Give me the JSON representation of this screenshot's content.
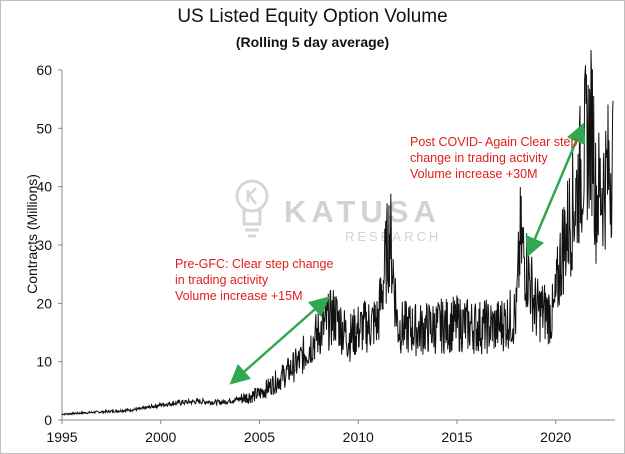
{
  "chart_data": {
    "type": "line",
    "title": "US Listed Equity Option Volume",
    "subtitle": "(Rolling 5 day average)",
    "xlabel": "",
    "ylabel": "Contracts (Millions)",
    "xlim": [
      1995,
      2023
    ],
    "ylim": [
      0,
      60
    ],
    "x_ticks": [
      1995,
      2000,
      2005,
      2010,
      2015,
      2020
    ],
    "y_ticks": [
      0,
      10,
      20,
      30,
      40,
      50,
      60
    ],
    "grid": false,
    "legend": "none",
    "colors": {
      "line": "#111111",
      "arrow": "#2fa84f",
      "annotation": "#e0201c",
      "axis": "#888888"
    },
    "series": [
      {
        "x": [
          1995,
          1996,
          1997,
          1998,
          1999,
          2000,
          2001,
          2002,
          2003,
          2004,
          2005,
          2006,
          2007,
          2008,
          2008.8,
          2009.5,
          2010,
          2011,
          2011.6,
          2012,
          2013,
          2014,
          2015,
          2016,
          2017,
          2018,
          2018.2,
          2019,
          2019.9,
          2020.3,
          2021,
          2021.5,
          2021.9,
          2022,
          2022.5,
          2022.9
        ],
        "values": [
          1.0,
          1.2,
          1.4,
          1.6,
          1.9,
          2.6,
          3.0,
          3.2,
          3.0,
          3.6,
          4.5,
          7.0,
          10.0,
          15.0,
          18.0,
          14.0,
          15.5,
          17.0,
          32.5,
          16.0,
          15.5,
          16.0,
          16.5,
          16.0,
          16.0,
          18.0,
          31.0,
          19.0,
          18.0,
          29.0,
          38.0,
          47.0,
          50.5,
          38.0,
          41.0,
          45.0
        ]
      }
    ],
    "annotations": [
      {
        "lines": [
          "Pre-GFC: Clear step change",
          "in trading activity",
          "Volume increase +15M"
        ]
      },
      {
        "lines": [
          "Post COVID- Again Clear step",
          "change in trading activity",
          "Volume increase +30M"
        ]
      }
    ],
    "watermark": {
      "word": "KATUSA",
      "sub": "RESEARCH"
    }
  }
}
